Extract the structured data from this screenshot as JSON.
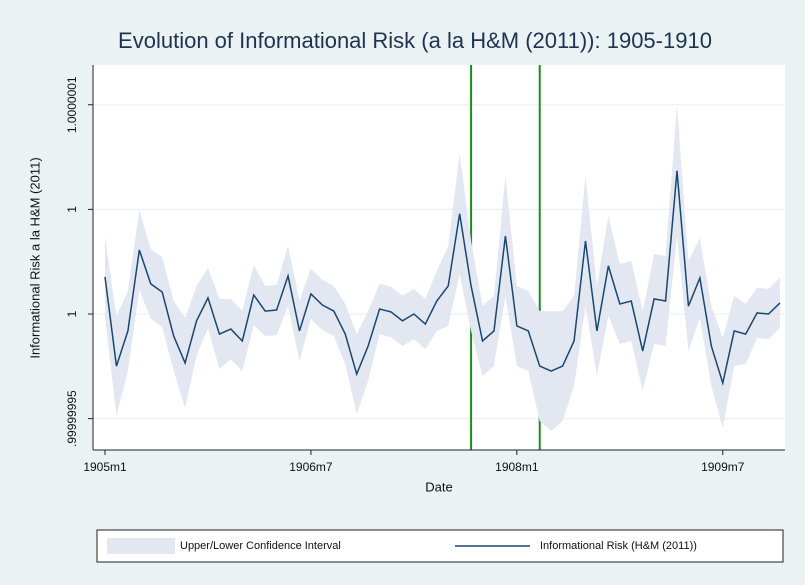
{
  "chart_data": {
    "type": "line",
    "title": "Evolution of Informational Risk (a la H&M (2011)): 1905-1910",
    "xlabel": "Date",
    "ylabel": "Informational Risk a la H&M (2011)",
    "x": [
      "1905m1",
      "1905m2",
      "1905m3",
      "1905m4",
      "1905m5",
      "1905m6",
      "1905m7",
      "1905m8",
      "1905m9",
      "1905m10",
      "1905m11",
      "1905m12",
      "1906m1",
      "1906m2",
      "1906m3",
      "1906m4",
      "1906m5",
      "1906m6",
      "1906m7",
      "1906m8",
      "1906m9",
      "1906m10",
      "1906m11",
      "1906m12",
      "1907m1",
      "1907m2",
      "1907m3",
      "1907m4",
      "1907m5",
      "1907m6",
      "1907m7",
      "1907m8",
      "1907m9",
      "1907m10",
      "1907m11",
      "1907m12",
      "1908m1",
      "1908m2",
      "1908m3",
      "1908m4",
      "1908m5",
      "1908m6",
      "1908m7",
      "1908m8",
      "1908m9",
      "1908m10",
      "1908m11",
      "1908m12",
      "1909m1",
      "1909m2",
      "1909m3",
      "1909m4",
      "1909m5",
      "1909m6",
      "1909m7",
      "1909m8",
      "1909m9",
      "1909m10",
      "1909m11",
      "1909m12"
    ],
    "xticks": [
      "1905m1",
      "1906m7",
      "1908m1",
      "1909m7"
    ],
    "ylim": [
      0.999999935,
      1.000000119
    ],
    "yticks": [
      {
        "value": 0.99999995,
        "label": ".99999995"
      },
      {
        "value": 1,
        "label": "1"
      },
      {
        "value": 1.00000005,
        "label": "1"
      },
      {
        "value": 1.0000001,
        "label": "1.0000001"
      }
    ],
    "grid": true,
    "vlines": [
      {
        "x": "1907m9",
        "color": "#1f8a1f"
      },
      {
        "x": "1908m3",
        "color": "#1f8a1f"
      }
    ],
    "series": [
      {
        "name": "Upper/Lower Confidence Interval",
        "type": "area",
        "color": "#e3e7f2",
        "upper": [
          1.0000000368,
          0.999999999,
          1.000000011,
          1.0000000497,
          1.0000000311,
          1.0000000272,
          1.0000000062,
          0.9999999981,
          1.0000000134,
          1.0000000221,
          1.0000000071,
          1.0000000072,
          1.0000000015,
          1.0000000235,
          1.0000000134,
          1.0000000139,
          1.0000000326,
          1.0000000063,
          1.0000000216,
          1.0000000163,
          1.0000000134,
          1.0000000048,
          0.9999999904,
          1.0000000014,
          1.0000000144,
          1.000000013,
          1.0000000087,
          1.000000012,
          1.0000000072,
          1.0000000206,
          1.0000000325,
          1.0000000766,
          1.0000000349,
          1.0000000038,
          1.0000000086,
          1.000000066,
          1.0000000134,
          1.000000011,
          1.0000000014,
          1.0000000014,
          1.0000000014,
          1.0000000086,
          1.000000066,
          1.0000000134,
          1.0000000469,
          1.0000000239,
          1.0000000253,
          1.0000000014,
          1.0000000287,
          1.0000000277,
          1.0000000995,
          1.0000000253,
          1.0000000363,
          1.0000000038,
          0.9999999885,
          1.0000000086,
          1.0000000048,
          1.0000000125,
          1.000000012,
          1.0000000173
        ],
        "lower": [
          0.9999999986,
          0.9999999512,
          0.9999999728,
          1.0000000115,
          0.9999999977,
          0.9999999938,
          0.9999999728,
          0.9999999551,
          0.99999998,
          0.9999999933,
          0.9999999737,
          0.9999999784,
          0.9999999727,
          0.9999999947,
          0.9999999894,
          0.9999999899,
          1.0000000038,
          0.9999999775,
          0.9999999976,
          0.9999999923,
          0.9999999894,
          0.999999976,
          0.9999999522,
          0.999999968,
          0.9999999904,
          0.999999989,
          0.9999999847,
          0.999999988,
          0.9999999832,
          0.9999999918,
          0.9999999943,
          1.0000000192,
          0.9999999919,
          0.9999999704,
          0.9999999752,
          1.0000000086,
          0.9999999752,
          0.9999999728,
          0.9999999488,
          0.999999944,
          0.9999999488,
          0.9999999656,
          1.0000000038,
          0.9999999704,
          0.9999999991,
          0.9999999857,
          0.9999999871,
          0.9999999632,
          0.9999999857,
          0.9999999847,
          1.0000000373,
          0.9999999823,
          0.9999999981,
          0.9999999656,
          0.9999999455,
          0.9999999752,
          0.999999976,
          0.9999999885,
          0.999999988,
          0.9999999933
        ]
      },
      {
        "name": "Informational Risk (H&M (2011))",
        "color": "#1a476f",
        "values": [
          1.0000000177,
          0.9999999751,
          0.9999999919,
          1.0000000306,
          1.0000000144,
          1.0000000105,
          0.9999999895,
          0.9999999766,
          0.9999999967,
          1.0000000077,
          0.9999999904,
          0.9999999928,
          0.9999999871,
          1.0000000091,
          1.0000000014,
          1.0000000019,
          1.0000000182,
          0.9999999919,
          1.0000000096,
          1.0000000043,
          1.0000000014,
          0.9999999904,
          0.9999999713,
          0.9999999847,
          1.0000000024,
          1.000000001,
          0.9999999967,
          1,
          0.9999999952,
          1.0000000062,
          1.0000000134,
          1.0000000479,
          1.0000000134,
          0.9999999871,
          0.9999999919,
          1.0000000373,
          0.9999999943,
          0.9999999919,
          0.9999999751,
          0.9999999727,
          0.9999999751,
          0.9999999871,
          1.0000000349,
          0.9999999919,
          1.000000023,
          1.0000000048,
          1.0000000062,
          0.9999999823,
          1.0000000072,
          1.0000000062,
          1.0000000684,
          1.0000000038,
          1.0000000172,
          0.9999999847,
          0.999999967,
          0.9999999919,
          0.9999999904,
          1.0000000005,
          1,
          1.0000000053
        ]
      }
    ]
  }
}
